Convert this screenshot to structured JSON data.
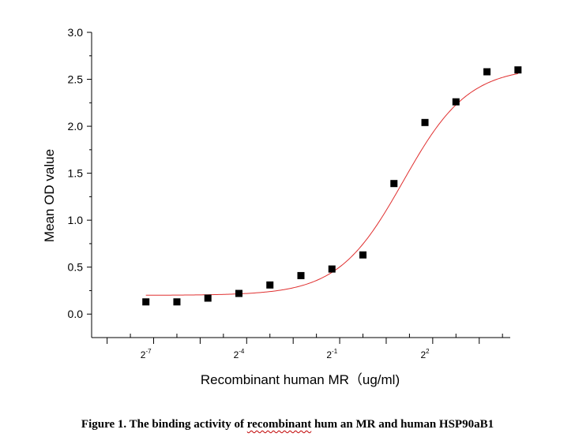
{
  "chart_data": {
    "type": "scatter",
    "xlabel": "Recombinant human MR（ug/ml)",
    "ylabel": "Mean OD value",
    "x_scale": "log2",
    "xlim_log2": [
      -9.0,
      4.5
    ],
    "ylim": [
      -0.25,
      3.0
    ],
    "y_ticks": [
      "0.0",
      "0.5",
      "1.0",
      "1.5",
      "2.0",
      "2.5",
      "3.0"
    ],
    "x_tick_labels": [
      {
        "base": "2",
        "exp": "-7",
        "log2": -7
      },
      {
        "base": "2",
        "exp": "-4",
        "log2": -4
      },
      {
        "base": "2",
        "exp": "-1",
        "log2": -1
      },
      {
        "base": "2",
        "exp": "2",
        "log2": 2
      }
    ],
    "points": [
      {
        "log2x": -7.25,
        "y": 0.13
      },
      {
        "log2x": -6.25,
        "y": 0.13
      },
      {
        "log2x": -5.25,
        "y": 0.17
      },
      {
        "log2x": -4.25,
        "y": 0.22
      },
      {
        "log2x": -3.25,
        "y": 0.31
      },
      {
        "log2x": -2.25,
        "y": 0.41
      },
      {
        "log2x": -1.25,
        "y": 0.48
      },
      {
        "log2x": -0.25,
        "y": 0.63
      },
      {
        "log2x": 0.75,
        "y": 1.39
      },
      {
        "log2x": 1.75,
        "y": 2.04
      },
      {
        "log2x": 2.75,
        "y": 2.26
      },
      {
        "log2x": 3.75,
        "y": 2.58
      },
      {
        "log2x": 4.75,
        "y": 2.6
      }
    ],
    "fit": {
      "type": "4PL",
      "bottom": 0.2,
      "top": 2.63,
      "center_log2": 1.05,
      "slope_factor": 1.05,
      "x_from_log2": -7.25,
      "x_to_log2": 4.75
    },
    "marker_color": "#000000",
    "fit_color": "#e03030"
  },
  "caption": {
    "before": "Figure 1. The binding activity of ",
    "squiggle": "recombinant",
    "after": " hum an MR and     human HSP90aB1"
  }
}
